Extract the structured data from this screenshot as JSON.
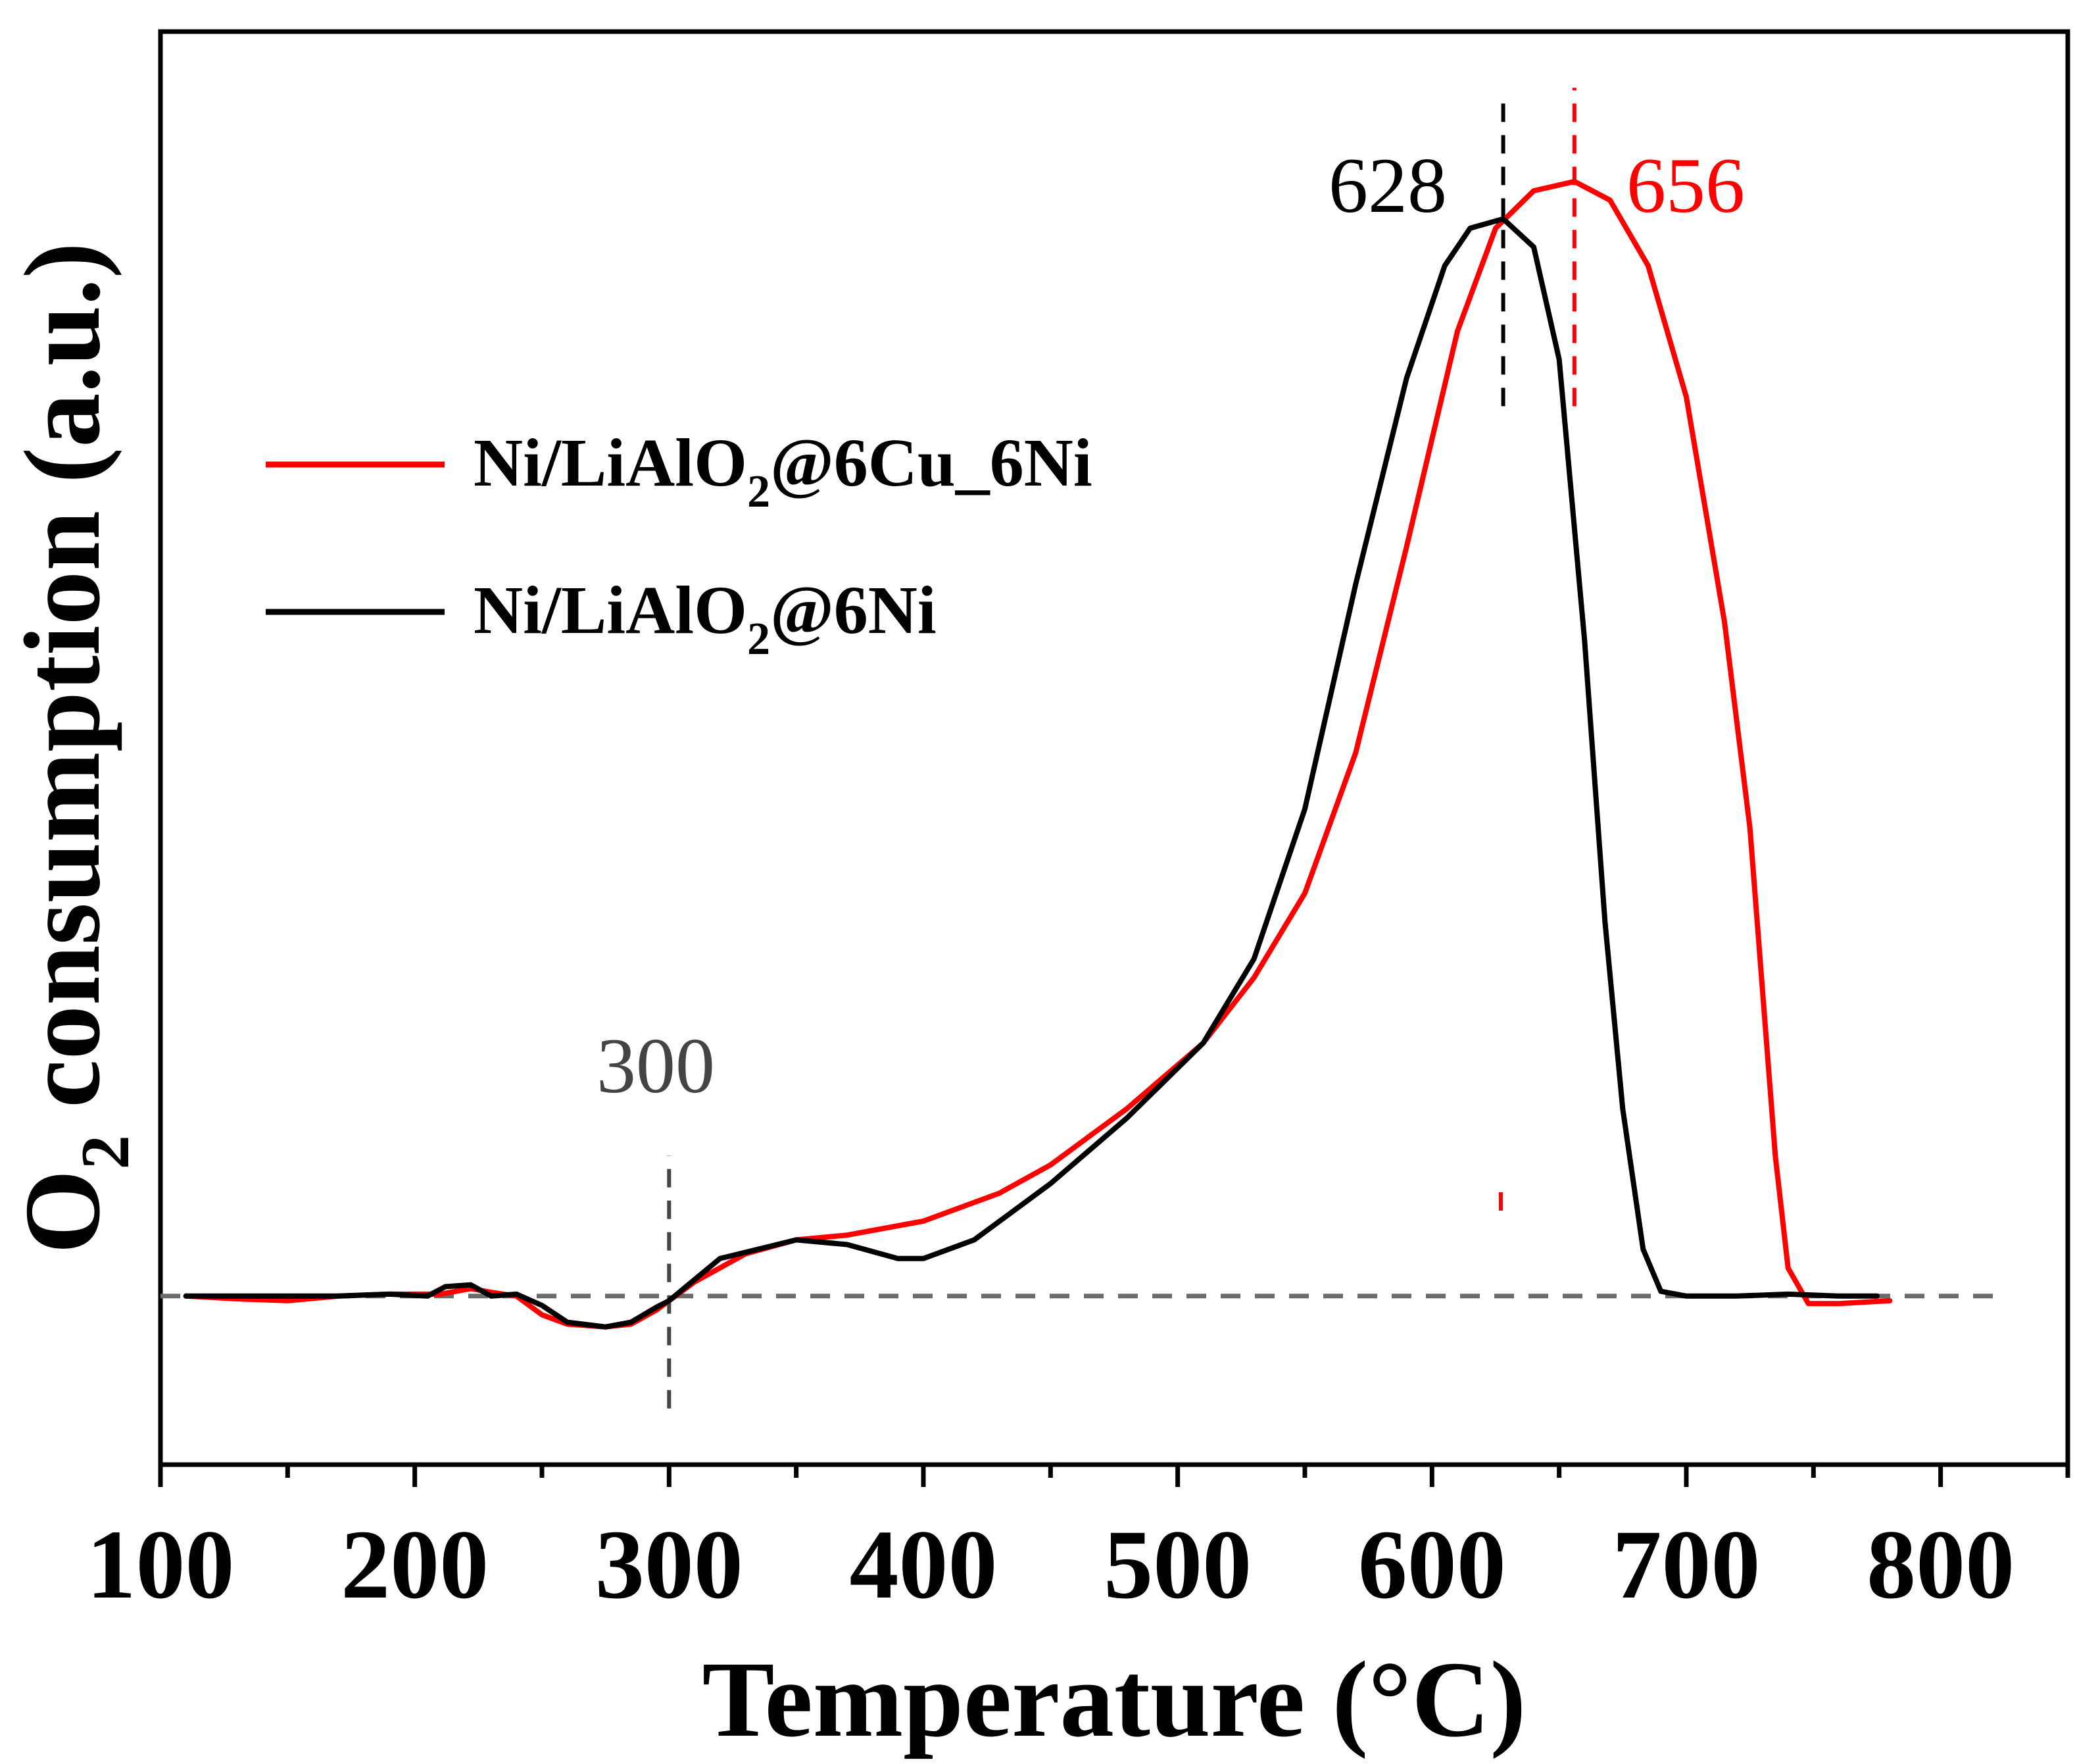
{
  "chart_data": {
    "type": "line",
    "title": "",
    "xlabel": "Temperature (°C)",
    "ylabel_main": "O",
    "ylabel_sub": "2",
    "ylabel_rest": " consumption (a.u.)",
    "xlim": [
      100,
      850
    ],
    "ylim": [
      -0.18,
      1.35
    ],
    "xticks": [
      100,
      200,
      300,
      400,
      500,
      600,
      700,
      800
    ],
    "xtick_labels": [
      "100",
      "200",
      "300",
      "400",
      "500",
      "600",
      "700",
      "800"
    ],
    "y_ticks_shown": false,
    "grid": false,
    "legend_position": "upper-left",
    "baseline_y": 0,
    "colors": {
      "red": "#ff0000",
      "black": "#000000",
      "gray": "#6b6b6b"
    },
    "series": [
      {
        "name": "Ni/LiAlO2@6Cu_6Ni",
        "legend_main": "Ni/LiAlO",
        "legend_sub": "2",
        "legend_rest": "@6Cu_6Ni",
        "color": "#ff0000",
        "x": [
          110,
          130,
          150,
          170,
          190,
          210,
          222,
          230,
          240,
          250,
          260,
          275,
          285,
          295,
          300,
          310,
          330,
          350,
          370,
          400,
          430,
          450,
          480,
          510,
          530,
          550,
          570,
          590,
          610,
          625,
          640,
          656,
          670,
          685,
          700,
          715,
          725,
          735,
          740,
          748,
          760,
          780
        ],
        "y": [
          0.0,
          -0.003,
          -0.005,
          0.0,
          0.002,
          0.002,
          0.008,
          0.004,
          0.0,
          -0.02,
          -0.03,
          -0.033,
          -0.03,
          -0.015,
          -0.005,
          0.015,
          0.045,
          0.06,
          0.065,
          0.08,
          0.11,
          0.14,
          0.2,
          0.27,
          0.34,
          0.43,
          0.58,
          0.8,
          1.03,
          1.14,
          1.18,
          1.19,
          1.17,
          1.1,
          0.96,
          0.72,
          0.5,
          0.15,
          0.03,
          -0.008,
          -0.008,
          -0.005
        ]
      },
      {
        "name": "Ni/LiAlO2@6Ni",
        "legend_main": "Ni/LiAlO",
        "legend_sub": "2",
        "legend_rest": "@6Ni",
        "color": "#000000",
        "x": [
          110,
          130,
          150,
          170,
          190,
          205,
          212,
          222,
          230,
          240,
          250,
          260,
          275,
          285,
          295,
          300,
          320,
          350,
          370,
          390,
          400,
          420,
          450,
          480,
          510,
          530,
          550,
          570,
          590,
          605,
          615,
          628,
          640,
          650,
          660,
          668,
          675,
          683,
          690,
          700,
          720,
          740,
          760,
          775
        ],
        "y": [
          0.0,
          0.0,
          0.0,
          0.0,
          0.002,
          0.0,
          0.01,
          0.012,
          0.0,
          0.002,
          -0.01,
          -0.028,
          -0.033,
          -0.028,
          -0.012,
          -0.005,
          0.04,
          0.06,
          0.055,
          0.04,
          0.04,
          0.06,
          0.12,
          0.19,
          0.27,
          0.36,
          0.52,
          0.76,
          0.98,
          1.1,
          1.14,
          1.15,
          1.12,
          1.0,
          0.7,
          0.4,
          0.2,
          0.05,
          0.005,
          0.0,
          0.0,
          0.002,
          0.0,
          0.0
        ]
      }
    ],
    "annotations": [
      {
        "label": "628",
        "x": 628,
        "color": "#000000",
        "line_y": [
          0.95,
          1.28
        ]
      },
      {
        "label": "656",
        "x": 656,
        "color": "#ff0000",
        "line_y": [
          0.95,
          1.29
        ]
      },
      {
        "label": "300",
        "x": 300,
        "color": "#444444",
        "line_y": [
          -0.12,
          0.15
        ]
      }
    ]
  }
}
